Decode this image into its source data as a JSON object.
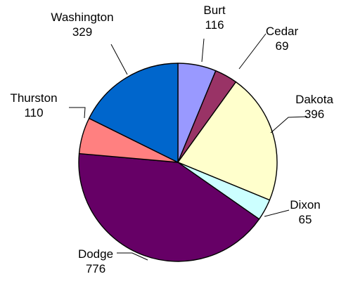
{
  "chart_data": {
    "type": "pie",
    "title": "",
    "categories": [
      "Burt",
      "Cedar",
      "Dakota",
      "Dixon",
      "Dodge",
      "Thurston",
      "Washington"
    ],
    "values": [
      116,
      69,
      396,
      65,
      776,
      110,
      329
    ],
    "start_angle_deg": 0,
    "direction": "clockwise",
    "legend": "none",
    "data_labels": "category name and value, outside with leader lines",
    "colors": [
      "#9999FF",
      "#993366",
      "#FFFFCC",
      "#CCFFFF",
      "#660066",
      "#FF8080",
      "#0066CC"
    ]
  }
}
